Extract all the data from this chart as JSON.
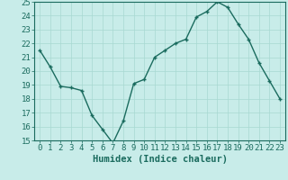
{
  "x": [
    0,
    1,
    2,
    3,
    4,
    5,
    6,
    7,
    8,
    9,
    10,
    11,
    12,
    13,
    14,
    15,
    16,
    17,
    18,
    19,
    20,
    21,
    22,
    23
  ],
  "y": [
    21.5,
    20.3,
    18.9,
    18.8,
    18.6,
    16.8,
    15.8,
    14.8,
    16.4,
    19.1,
    19.4,
    21.0,
    21.5,
    22.0,
    22.3,
    23.9,
    24.3,
    25.0,
    24.6,
    23.4,
    22.3,
    20.6,
    19.3,
    18.0
  ],
  "line_color": "#1a6b5e",
  "marker": "+",
  "bg_color": "#c8ece9",
  "grid_color": "#a8d8d2",
  "xlabel": "Humidex (Indice chaleur)",
  "xlim": [
    -0.5,
    23.5
  ],
  "ylim": [
    15,
    25
  ],
  "yticks": [
    15,
    16,
    17,
    18,
    19,
    20,
    21,
    22,
    23,
    24,
    25
  ],
  "xticks": [
    0,
    1,
    2,
    3,
    4,
    5,
    6,
    7,
    8,
    9,
    10,
    11,
    12,
    13,
    14,
    15,
    16,
    17,
    18,
    19,
    20,
    21,
    22,
    23
  ],
  "tick_color": "#1a6b5e",
  "label_fontsize": 6.5,
  "xlabel_fontsize": 7.5,
  "linewidth": 1.0,
  "markersize": 3.5,
  "markeredgewidth": 1.0
}
